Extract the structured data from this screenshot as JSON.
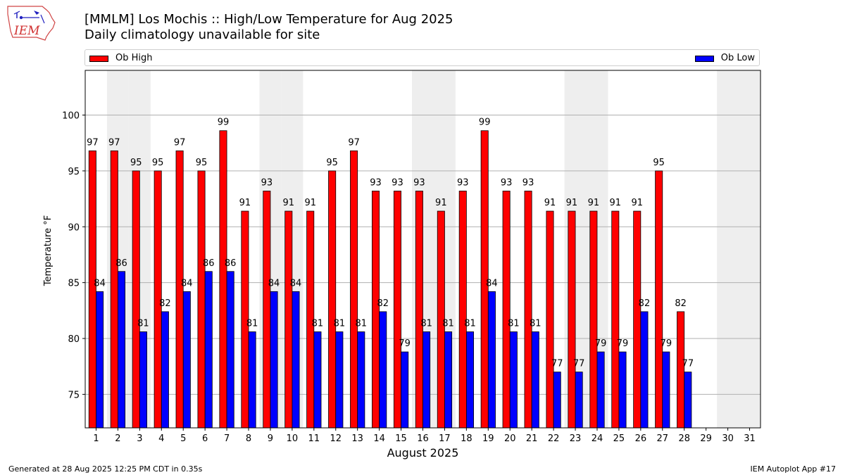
{
  "header": {
    "title_line1": "[MMLM] Los Mochis :: High/Low Temperature for Aug 2025",
    "title_line2": "Daily climatology unavailable for site"
  },
  "logo": {
    "text": "IEM"
  },
  "legend": {
    "high_label": "Ob High",
    "low_label": "Ob Low"
  },
  "footer": {
    "left": "Generated at 28 Aug 2025 12:25 PM CDT in 0.35s",
    "right": "IEM Autoplot App #17"
  },
  "colors": {
    "high": "#ff0000",
    "low": "#0000ff",
    "weekend_band": "#eeeeee",
    "grid": "#b0b0b0"
  },
  "chart_data": {
    "type": "bar",
    "xlabel": "August 2025",
    "ylabel": "Temperature °F",
    "ylim": [
      72,
      104
    ],
    "yticks": [
      75,
      80,
      85,
      90,
      95,
      100
    ],
    "grid": "horizontal",
    "legend_placement": "top, above plot",
    "categories": [
      "1",
      "2",
      "3",
      "4",
      "5",
      "6",
      "7",
      "8",
      "9",
      "10",
      "11",
      "12",
      "13",
      "14",
      "15",
      "16",
      "17",
      "18",
      "19",
      "20",
      "21",
      "22",
      "23",
      "24",
      "25",
      "26",
      "27",
      "28",
      "29",
      "30",
      "31"
    ],
    "weekend_days": [
      2,
      3,
      9,
      10,
      16,
      17,
      23,
      24,
      30,
      31
    ],
    "series": [
      {
        "name": "Ob High",
        "values": [
          97,
          97,
          95,
          95,
          97,
          95,
          99,
          91,
          93,
          91,
          91,
          95,
          97,
          93,
          93,
          93,
          91,
          93,
          99,
          93,
          93,
          91,
          91,
          91,
          91,
          91,
          95,
          82,
          null,
          null,
          null
        ]
      },
      {
        "name": "Ob Low",
        "values": [
          84,
          86,
          81,
          82,
          84,
          86,
          86,
          81,
          84,
          84,
          81,
          81,
          81,
          82,
          79,
          81,
          81,
          81,
          84,
          81,
          81,
          77,
          77,
          79,
          79,
          82,
          79,
          77,
          null,
          null,
          null
        ]
      }
    ],
    "plotted_values": {
      "high": [
        96.8,
        96.8,
        95,
        95,
        96.8,
        95,
        98.6,
        91.4,
        93.2,
        91.4,
        91.4,
        95,
        96.8,
        93.2,
        93.2,
        93.2,
        91.4,
        93.2,
        98.6,
        93.2,
        93.2,
        91.4,
        91.4,
        91.4,
        91.4,
        91.4,
        95,
        82.4,
        null,
        null,
        null
      ],
      "low": [
        84.2,
        86,
        80.6,
        82.4,
        84.2,
        86,
        86,
        80.6,
        84.2,
        84.2,
        80.6,
        80.6,
        80.6,
        82.4,
        78.8,
        80.6,
        80.6,
        80.6,
        84.2,
        80.6,
        80.6,
        77,
        77,
        78.8,
        78.8,
        82.4,
        78.8,
        77,
        null,
        null,
        null
      ]
    }
  }
}
